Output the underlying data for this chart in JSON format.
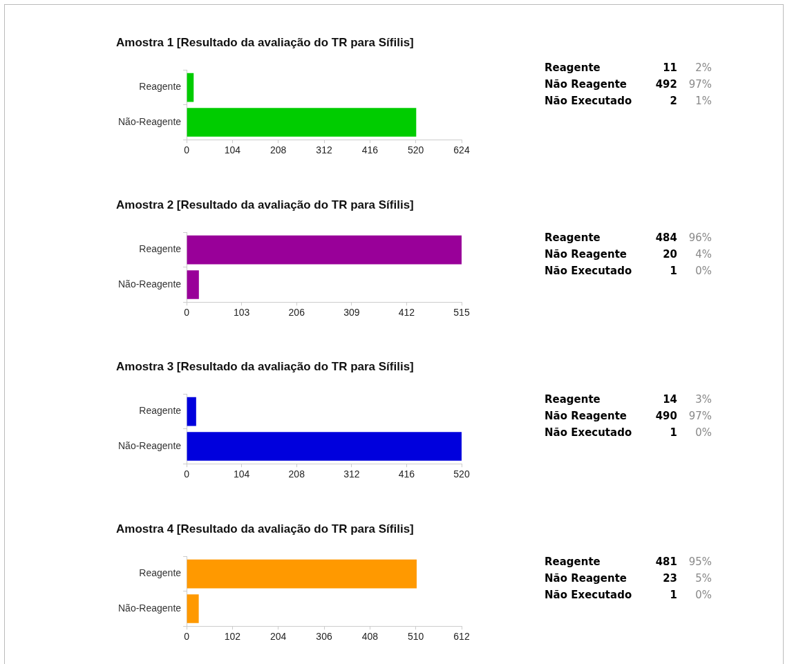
{
  "chart_data": [
    {
      "type": "bar",
      "orientation": "horizontal",
      "title": "Amostra 1 [Resultado da avaliação do TR para Sífilis]",
      "categories": [
        "Reagente",
        "Não-Reagente"
      ],
      "values": [
        16,
        521
      ],
      "color": "#00cc00",
      "xlim": [
        0,
        624
      ],
      "xticks": [
        0,
        104,
        208,
        312,
        416,
        520,
        624
      ],
      "grid": false
    },
    {
      "type": "other",
      "annotations": [
        "Reagente",
        "11",
        "2%",
        "Não Reagente",
        "492",
        "97%",
        "Não Executado",
        "2",
        "1%"
      ]
    },
    {
      "type": "bar",
      "orientation": "horizontal",
      "title": "Amostra 2 [Resultado da avaliação do TR para Sífilis]",
      "categories": [
        "Reagente",
        "Não-Reagente"
      ],
      "values": [
        515,
        23
      ],
      "color": "#990099",
      "xlim": [
        0,
        515
      ],
      "xticks": [
        0,
        103,
        206,
        309,
        412,
        515
      ],
      "grid": false
    },
    {
      "type": "other",
      "annotations": [
        "Reagente",
        "484",
        "96%",
        "Não Reagente",
        "20",
        "4%",
        "Não Executado",
        "1",
        "0%"
      ]
    },
    {
      "type": "bar",
      "orientation": "horizontal",
      "title": "Amostra 3 [Resultado da avaliação do TR para Sífilis]",
      "categories": [
        "Reagente",
        "Não-Reagente"
      ],
      "values": [
        18,
        520
      ],
      "color": "#0000dd",
      "xlim": [
        0,
        520
      ],
      "xticks": [
        0,
        104,
        208,
        312,
        416,
        520
      ],
      "grid": false
    },
    {
      "type": "other",
      "annotations": [
        "Reagente",
        "14",
        "3%",
        "Não Reagente",
        "490",
        "97%",
        "Não Executado",
        "1",
        "0%"
      ]
    },
    {
      "type": "bar",
      "orientation": "horizontal",
      "title": "Amostra 4 [Resultado da avaliação do TR para Sífilis]",
      "categories": [
        "Reagente",
        "Não-Reagente"
      ],
      "values": [
        512,
        27
      ],
      "color": "#ff9900",
      "xlim": [
        0,
        612
      ],
      "xticks": [
        0,
        102,
        204,
        306,
        408,
        510,
        612
      ],
      "grid": false
    },
    {
      "type": "other",
      "annotations": [
        "Reagente",
        "481",
        "95%",
        "Não Reagente",
        "23",
        "5%",
        "Não Executado",
        "1",
        "0%"
      ]
    }
  ]
}
